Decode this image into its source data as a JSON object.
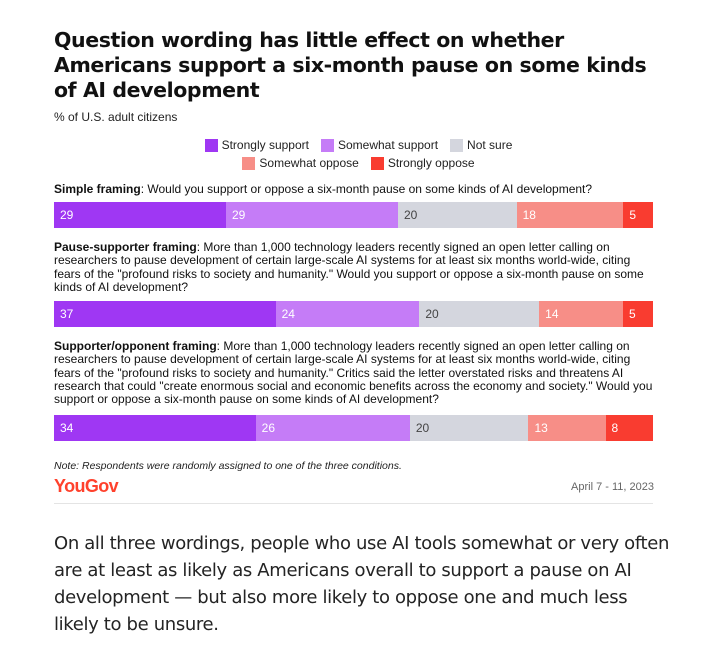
{
  "chart_data": {
    "type": "bar",
    "stacked": true,
    "orientation": "horizontal",
    "title": "Question wording has little effect on whether Americans support a six-month pause on some kinds of AI development",
    "subtitle": "% of U.S. adult citizens",
    "legend": [
      "Strongly support",
      "Somewhat support",
      "Not sure",
      "Somewhat oppose",
      "Strongly oppose"
    ],
    "colors": [
      "#9f37f3",
      "#c57cf7",
      "#d4d6de",
      "#f78e87",
      "#f93c30"
    ],
    "categories": [
      {
        "label": "Simple framing",
        "text": ": Would you support or oppose a six-month pause on some kinds of AI development?"
      },
      {
        "label": "Pause-supporter framing",
        "text": ": More than 1,000 technology leaders recently signed an open letter calling on researchers to pause development of certain large-scale AI systems for at least six months world-wide, citing fears of the \"profound risks to society and humanity.\" Would you support or oppose a six-month pause on some kinds of AI development?"
      },
      {
        "label": "Supporter/opponent framing",
        "text": ": More than 1,000 technology leaders recently signed an open letter calling on researchers to pause development of certain large-scale AI systems for at least six months world-wide, citing fears of the \"profound risks to society and humanity.\" Critics said the letter overstated risks and threatens AI research that could \"create enormous social and economic benefits across the economy and society.\" Would you support or oppose a six-month pause on some kinds of AI development?"
      }
    ],
    "series": [
      {
        "name": "Strongly support",
        "values": [
          29,
          37,
          34
        ]
      },
      {
        "name": "Somewhat support",
        "values": [
          29,
          24,
          26
        ]
      },
      {
        "name": "Not sure",
        "values": [
          20,
          20,
          20
        ]
      },
      {
        "name": "Somewhat oppose",
        "values": [
          18,
          14,
          13
        ]
      },
      {
        "name": "Strongly oppose",
        "values": [
          5,
          5,
          8
        ]
      }
    ],
    "note": "Note: Respondents were randomly assigned to one of the three conditions.",
    "source": "YouGov",
    "date": "April 7 - 11, 2023"
  },
  "article": {
    "paragraph": "On all three wordings, people who use AI tools somewhat or very often are at least as likely as Americans overall to support a pause on AI development — but also more likely to oppose one and much less likely to be unsure."
  }
}
